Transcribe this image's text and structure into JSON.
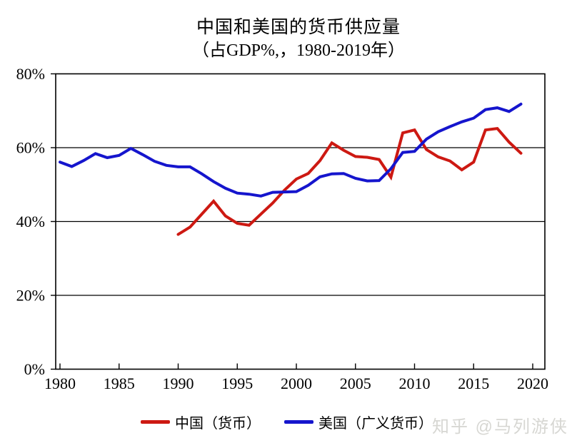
{
  "title": {
    "line1": "中国和美国的货币供应量",
    "line2": "（占GDP%,，1980-2019年）"
  },
  "watermark": {
    "text": "知乎 @马列游侠"
  },
  "colors": {
    "china_line": "#cd1912",
    "us_line": "#1515cd",
    "axis": "#000000",
    "gridline": "#000000",
    "background": "#ffffff",
    "watermark_text": "#d7d7d3"
  },
  "legend": {
    "items": [
      {
        "id": "china",
        "label": "中国（货币）",
        "color": "#cd1912"
      },
      {
        "id": "us",
        "label": "美国（广义货币）",
        "color": "#1515cd"
      }
    ]
  },
  "chart_data": {
    "type": "line",
    "title": "中国和美国的货币供应量（占GDP%,，1980-2019年）",
    "xlabel": "",
    "ylabel": "",
    "xlim": [
      1979.6,
      2021
    ],
    "ylim": [
      0,
      80
    ],
    "grid": "horizontal",
    "gridlines_at": [
      20,
      40,
      60
    ],
    "legend_position": "bottom",
    "x_tick_values": [
      1980,
      1985,
      1990,
      1995,
      2000,
      2005,
      2010,
      2015,
      2020
    ],
    "x_tick_labels": [
      "1980",
      "1985",
      "1990",
      "1995",
      "2000",
      "2005",
      "2010",
      "2015",
      "2020"
    ],
    "y_tick_values": [
      0,
      20,
      40,
      60,
      80
    ],
    "y_tick_labels": [
      "0%",
      "20%",
      "40%",
      "60%",
      "80%"
    ],
    "series": [
      {
        "name": "中国（货币）",
        "color": "#cd1912",
        "years": [
          1990,
          1991,
          1992,
          1993,
          1994,
          1995,
          1996,
          1997,
          1998,
          1999,
          2000,
          2001,
          2002,
          2003,
          2004,
          2005,
          2006,
          2007,
          2008,
          2009,
          2010,
          2011,
          2012,
          2013,
          2014,
          2015,
          2016,
          2017,
          2018,
          2019
        ],
        "values": [
          36.5,
          38.5,
          42.0,
          45.5,
          41.5,
          39.5,
          39.0,
          42.0,
          45.0,
          48.5,
          51.5,
          53.0,
          56.5,
          61.3,
          59.3,
          57.6,
          57.4,
          56.8,
          52.0,
          64.0,
          64.8,
          59.5,
          57.5,
          56.4,
          54.0,
          56.1,
          64.8,
          65.2,
          61.5,
          58.5
        ]
      },
      {
        "name": "美国（广义货币）",
        "color": "#1515cd",
        "years": [
          1980,
          1981,
          1982,
          1983,
          1984,
          1985,
          1986,
          1987,
          1988,
          1989,
          1990,
          1991,
          1992,
          1993,
          1994,
          1995,
          1996,
          1997,
          1998,
          1999,
          2000,
          2001,
          2002,
          2003,
          2004,
          2005,
          2006,
          2007,
          2008,
          2009,
          2010,
          2011,
          2012,
          2013,
          2014,
          2015,
          2016,
          2017,
          2018,
          2019
        ],
        "values": [
          56.1,
          54.9,
          56.5,
          58.4,
          57.3,
          57.9,
          59.8,
          58.1,
          56.3,
          55.2,
          54.8,
          54.8,
          52.9,
          50.8,
          49.0,
          47.7,
          47.4,
          46.9,
          47.9,
          48.0,
          48.1,
          49.8,
          52.1,
          52.9,
          53.0,
          51.7,
          51.0,
          51.1,
          54.3,
          58.7,
          59.0,
          62.3,
          64.3,
          65.7,
          67.0,
          68.0,
          70.3,
          70.8,
          69.8,
          71.8
        ]
      }
    ]
  }
}
